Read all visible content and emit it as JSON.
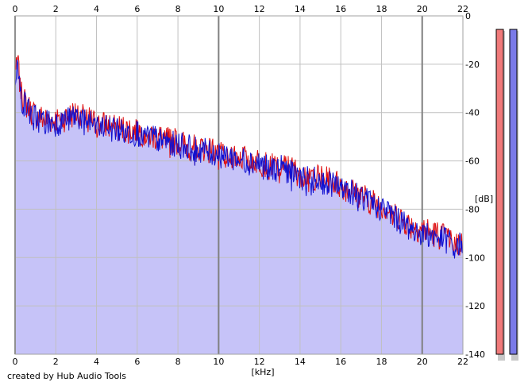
{
  "footer": {
    "credit": "created by Hub Audio Tools"
  },
  "colors": {
    "background": "#ffffff",
    "fill": "#c6c3f8",
    "channel_left": "#e01010",
    "channel_right": "#1010d0",
    "grid": "#c0c0c0",
    "grid_major": "#808080",
    "meter_left": "#f07a7a",
    "meter_right": "#7a7ae8"
  },
  "chart_data": {
    "type": "line",
    "title": "",
    "xlabel": "[kHz]",
    "ylabel": "[dB]",
    "xlim": [
      0,
      22
    ],
    "ylim": [
      -140,
      0
    ],
    "x_ticks": [
      0,
      2,
      4,
      6,
      8,
      10,
      12,
      14,
      16,
      18,
      20,
      22
    ],
    "y_ticks": [
      0,
      -20,
      -40,
      -60,
      -80,
      -100,
      -120,
      -140
    ],
    "y_tick_labels": [
      "0",
      "-20",
      "-40",
      "-60",
      "-80",
      "-100",
      "-120",
      "-140"
    ],
    "grid": true,
    "x": [
      0,
      0.1,
      0.2,
      0.3,
      0.5,
      0.75,
      1,
      1.5,
      2,
      2.5,
      3,
      3.5,
      4,
      4.5,
      5,
      5.5,
      6,
      6.5,
      7,
      7.5,
      8,
      8.5,
      9,
      9.5,
      10,
      10.5,
      11,
      11.5,
      12,
      12.5,
      13,
      13.5,
      14,
      14.5,
      15,
      15.5,
      16,
      16.5,
      17,
      17.5,
      18,
      18.5,
      19,
      19.5,
      20,
      20.5,
      21,
      21.5,
      22
    ],
    "series": [
      {
        "values": [
          -22,
          -15,
          -25,
          -32,
          -36,
          -39,
          -41,
          -43,
          -43,
          -42,
          -40,
          -42,
          -45,
          -45,
          -46,
          -47,
          -47,
          -49,
          -50,
          -51,
          -52,
          -54,
          -54,
          -55,
          -56,
          -57,
          -58,
          -59,
          -60,
          -62,
          -62,
          -63,
          -65,
          -66,
          -67,
          -68,
          -70,
          -72,
          -74,
          -77,
          -78,
          -81,
          -84,
          -87,
          -88,
          -90,
          -91,
          -93,
          -95
        ]
      },
      {
        "values": [
          -24,
          -20,
          -28,
          -34,
          -37,
          -40,
          -42,
          -44,
          -44,
          -43,
          -41,
          -43,
          -46,
          -46,
          -47,
          -48,
          -48,
          -50,
          -51,
          -52,
          -53,
          -54,
          -55,
          -56,
          -57,
          -58,
          -59,
          -60,
          -61,
          -63,
          -63,
          -64,
          -66,
          -67,
          -68,
          -69,
          -70,
          -72,
          -74,
          -78,
          -79,
          -82,
          -85,
          -88,
          -89,
          -91,
          -92,
          -94,
          -95
        ]
      }
    ],
    "meters": [
      {
        "value": -140
      },
      {
        "value": -140
      }
    ]
  }
}
